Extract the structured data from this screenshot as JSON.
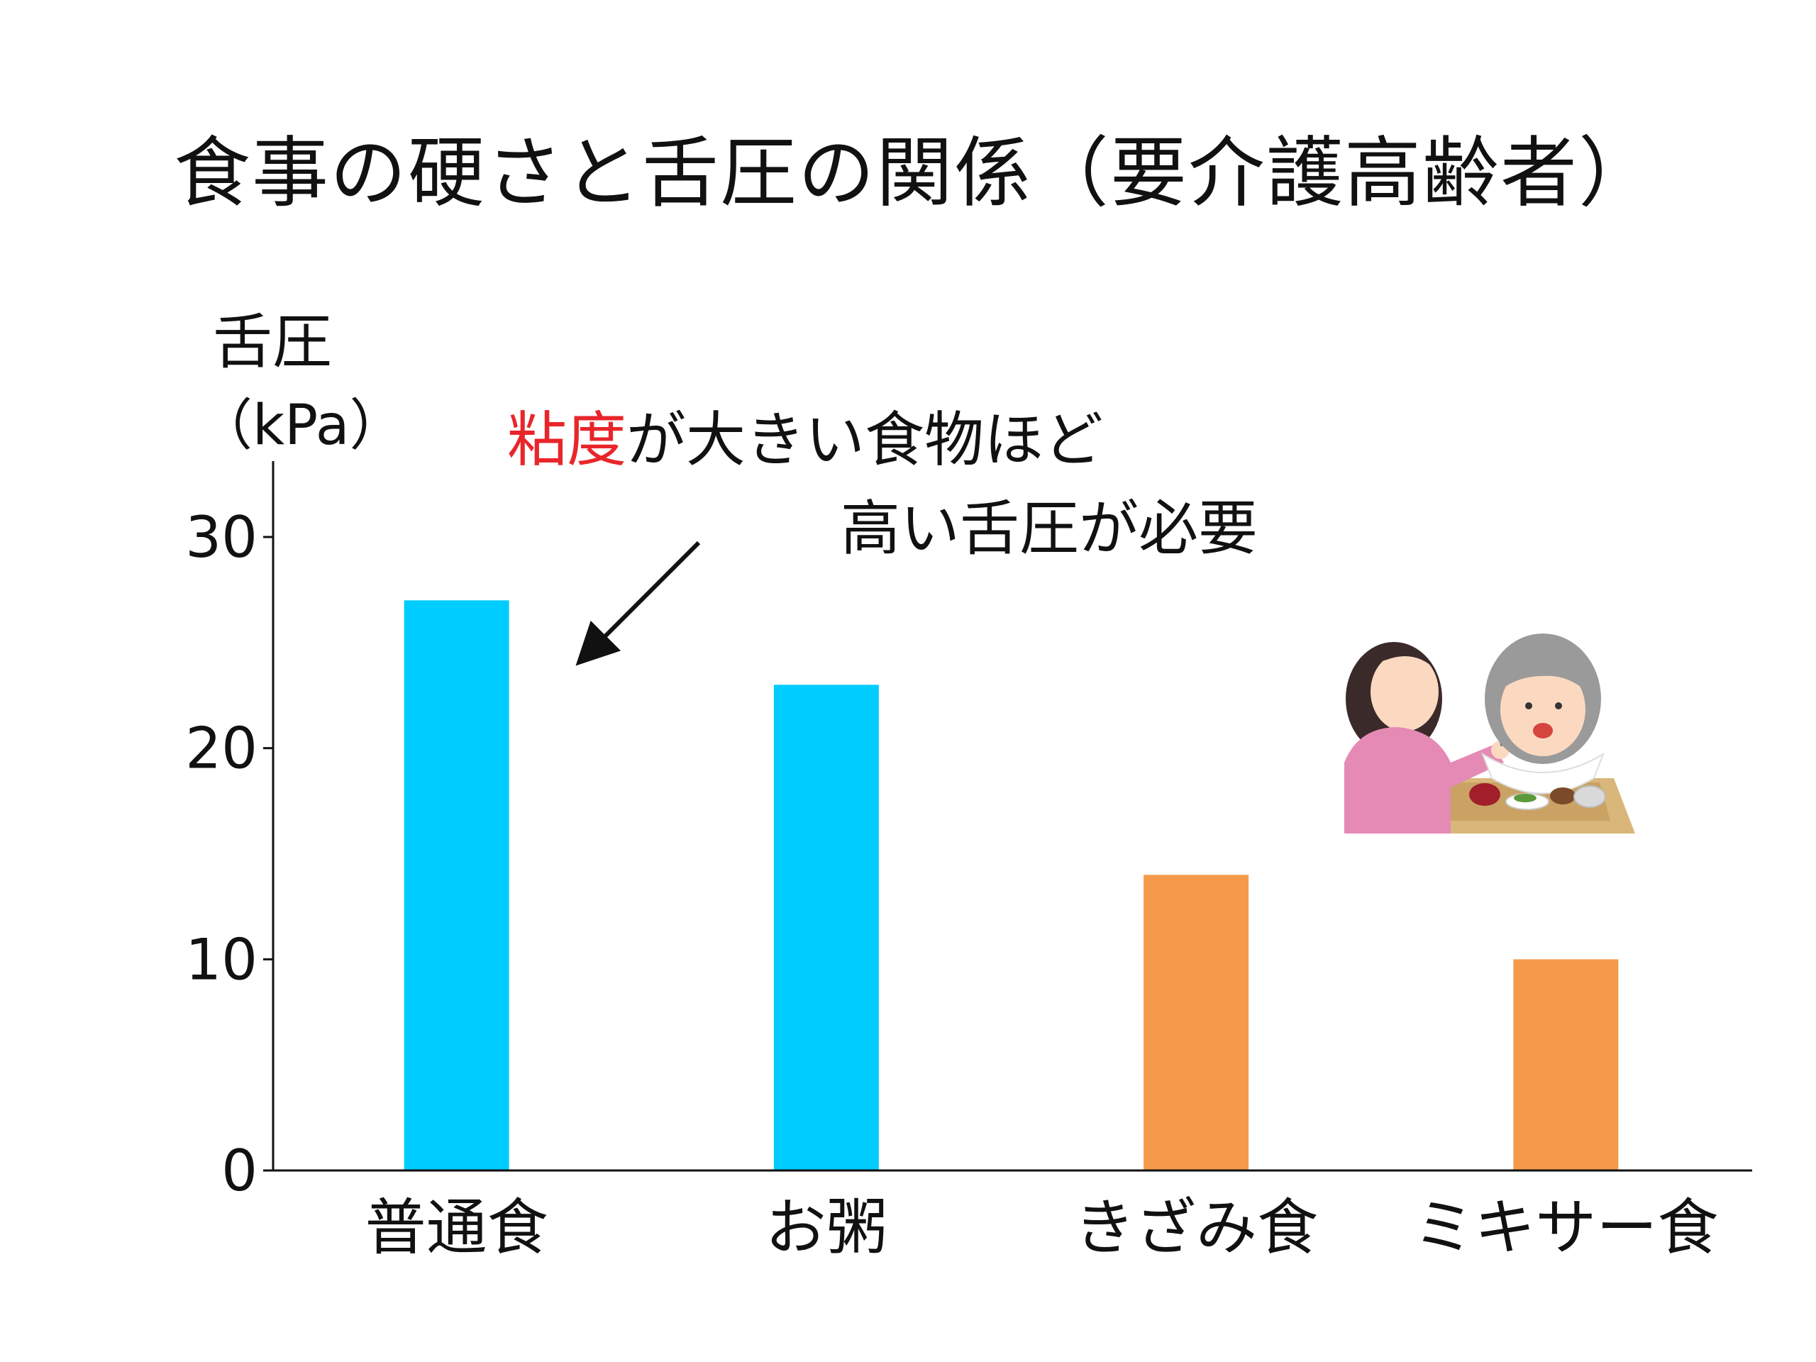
{
  "title": "食事の硬さと舌圧の関係（要介護高齢者）",
  "ylabel_line1": "舌圧",
  "ylabel_line2": "（kPa）",
  "annotation": {
    "highlight": "粘度",
    "line1_rest": "が大きい食物ほど",
    "line2": "高い舌圧が必要"
  },
  "chart_data": {
    "type": "bar",
    "title": "食事の硬さと舌圧の関係（要介護高齢者）",
    "xlabel": "",
    "ylabel": "舌圧（kPa）",
    "categories": [
      "普通食",
      "お粥",
      "きざみ食",
      "ミキサー食"
    ],
    "values": [
      27,
      23,
      14,
      10
    ],
    "colors": [
      "#00ccff",
      "#00ccff",
      "#f49a4a",
      "#f49a4a"
    ],
    "ylim": [
      0,
      33
    ],
    "yticks": [
      0,
      10,
      20,
      30
    ],
    "grid": false,
    "legend": "none"
  },
  "illustration": {
    "icon": "caregiver-feeding-elderly-icon",
    "colors": {
      "caregiver_shirt": "#e58ab4",
      "tray": "#d9b77a",
      "bib": "#ffffff",
      "hair_gray": "#9a9a9a"
    }
  },
  "colors": {
    "axis": "#111111",
    "highlight": "#e8262a"
  }
}
